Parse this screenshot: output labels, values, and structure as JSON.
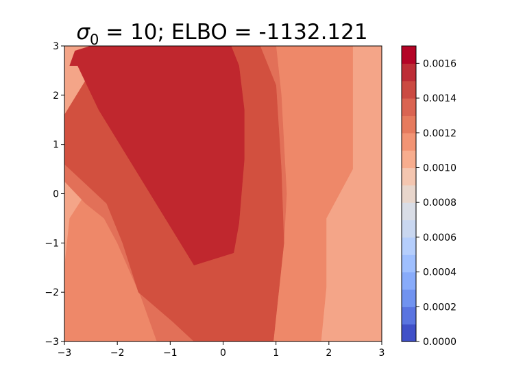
{
  "chart_data": {
    "type": "heatmap",
    "title": {
      "sigma": "σ",
      "subscript": "0",
      "rest": " = 10; ELBO = -1132.121"
    },
    "xlabel": "",
    "ylabel": "",
    "xlim": [
      -3,
      3
    ],
    "ylim": [
      -3,
      3
    ],
    "xticks": [
      -3,
      -2,
      -1,
      0,
      1,
      2,
      3
    ],
    "xtick_labels": [
      "−3",
      "−2",
      "−1",
      "0",
      "1",
      "2",
      "3"
    ],
    "yticks": [
      -3,
      -2,
      -1,
      0,
      1,
      2,
      3
    ],
    "ytick_labels": [
      "−3",
      "−2",
      "−1",
      "0",
      "1",
      "2",
      "3"
    ],
    "colorbar": {
      "range": [
        0,
        0.0017
      ],
      "n_levels": 17,
      "level_colors": [
        "#4050c8",
        "#5a74e0",
        "#7193f0",
        "#88abfa",
        "#9fbffe",
        "#b5cefc",
        "#c9d7f0",
        "#d9dde6",
        "#e8d6cc",
        "#f4c6b0",
        "#f7ad8e",
        "#f29474",
        "#e67b5e",
        "#da6452",
        "#cb4a42",
        "#bd2d36",
        "#b40426"
      ],
      "ticks": [
        0.0,
        0.0002,
        0.0004,
        0.0006,
        0.0008,
        0.001,
        0.0012,
        0.0014,
        0.0016
      ],
      "tick_labels": [
        "0.0000",
        "0.0002",
        "0.0004",
        "0.0006",
        "0.0008",
        "0.0010",
        "0.0012",
        "0.0014",
        "0.0016"
      ]
    },
    "contour_bands": [
      {
        "level_max": 0.00125,
        "color": "#f4a588",
        "x": [
          -3,
          3,
          3,
          -3
        ],
        "y": [
          -3,
          -3,
          3,
          3
        ]
      },
      {
        "level_max": 0.0013,
        "color": "#ee8869",
        "x": [
          -3,
          -3,
          -2.9,
          -2.6,
          -2.3,
          -1.5,
          -0.8,
          0.4,
          1.2,
          1.9,
          2.45,
          2.45,
          1.95,
          1.95,
          1.85
        ],
        "y": [
          -3,
          -1.5,
          -0.5,
          0.0,
          1.5,
          2.7,
          3,
          3,
          3,
          3,
          3,
          0.5,
          -0.5,
          -1.9,
          -3
        ]
      },
      {
        "level_max": 0.0014,
        "color": "#e27058",
        "x": [
          -3,
          -3,
          -2.8,
          -2.3,
          -1.6,
          -0.7,
          0.4,
          1.0,
          1.1,
          1.2,
          1.15,
          1.05,
          0.85,
          -1.25,
          -1.55,
          -2.0,
          -2.25,
          -2.6,
          -3
        ],
        "y": [
          -1.2,
          0.7,
          1.5,
          2.3,
          2.85,
          3,
          3,
          3,
          2.0,
          0.0,
          -1.0,
          -2.0,
          -3,
          -3,
          -2.1,
          -1.0,
          -0.5,
          -0.2,
          0.25
        ]
      },
      {
        "level_max": 0.00155,
        "color": "#d2503f",
        "x": [
          -3,
          -3,
          -2.6,
          -1.5,
          -0.5,
          0.7,
          1.0,
          1.1,
          1.15,
          1.05,
          0.95,
          0.0,
          -0.55,
          -0.95,
          -1.6,
          -1.9,
          -2.2,
          -2.6,
          -3
        ],
        "y": [
          0.6,
          1.6,
          2.3,
          2.9,
          3,
          3,
          2.2,
          0.5,
          -1.0,
          -2.0,
          -3,
          -3,
          -3,
          -2.6,
          -2.0,
          -1.0,
          -0.2,
          0.2,
          0.6
        ]
      },
      {
        "level_max": 0.0017,
        "color": "#c0272e",
        "x": [
          -2.9,
          -2.8,
          -2.5,
          -1.5,
          -0.9,
          -0.65,
          0.15,
          0.3,
          0.4,
          0.4,
          0.3,
          0.2,
          -0.55,
          -2.35,
          -2.75
        ],
        "y": [
          2.6,
          2.9,
          3,
          3,
          3,
          3,
          3,
          2.6,
          1.7,
          0.7,
          -0.6,
          -1.2,
          -1.45,
          1.7,
          2.6
        ]
      }
    ]
  }
}
